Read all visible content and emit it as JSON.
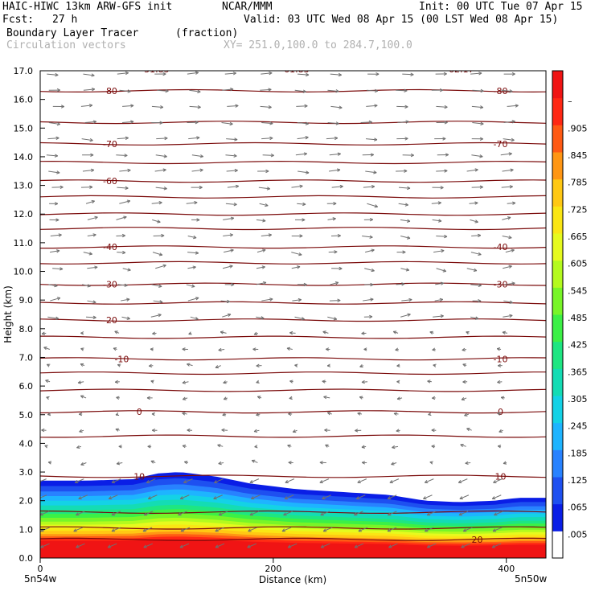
{
  "header": {
    "model": "HAIC-HIWC 13km ARW-GFS init",
    "org": "NCAR/MMM",
    "init": "Init: 00 UTC Tue 07 Apr 15",
    "fcst_label": "Fcst:",
    "fcst_value": "27 h",
    "valid": "Valid: 03 UTC Wed 08 Apr 15 (00 LST Wed 08 Apr 15)",
    "field": "Boundary Layer Tracer",
    "units": "(fraction)",
    "overlay": "Circulation vectors",
    "xy": "XY= 251.0,100.0 to 284.7,100.0"
  },
  "chart_data": {
    "type": "heatmap",
    "title": "Boundary Layer Tracer (fraction)",
    "xlabel": "Distance (km)",
    "ylabel": "Height (km)",
    "xlim": [
      0,
      434
    ],
    "ylim": [
      0,
      17
    ],
    "x_ticks": [
      0,
      200,
      400
    ],
    "y_ticks": [
      "0.0",
      "1.0",
      "2.0",
      "3.0",
      "4.0",
      "5.0",
      "6.0",
      "7.0",
      "8.0",
      "9.0",
      "10.0",
      "11.0",
      "12.0",
      "13.0",
      "14.0",
      "15.0",
      "16.0",
      "17.0"
    ],
    "x_endpoints": [
      "5n54w",
      "5n50w"
    ],
    "colorbar_ticks": [
      ".005",
      ".065",
      ".125",
      ".185",
      ".245",
      ".305",
      ".365",
      ".425",
      ".485",
      ".545",
      ".605",
      ".665",
      ".725",
      ".785",
      ".845",
      ".905",
      "–"
    ],
    "colorbar_colors": [
      "#ffffff",
      "#0a1ee6",
      "#1e50f0",
      "#2882ff",
      "#1eb4ff",
      "#14d2e6",
      "#14dcb4",
      "#1ee682",
      "#3cf046",
      "#78f528",
      "#b4fa1e",
      "#e6fa1e",
      "#fae614",
      "#ffc814",
      "#ff9614",
      "#ff5a14",
      "#ff2814",
      "#f01414"
    ],
    "bl_top_km": [
      [
        0,
        2.7
      ],
      [
        40,
        2.7
      ],
      [
        80,
        2.75
      ],
      [
        100,
        2.95
      ],
      [
        120,
        3.0
      ],
      [
        150,
        2.85
      ],
      [
        180,
        2.6
      ],
      [
        220,
        2.4
      ],
      [
        260,
        2.3
      ],
      [
        300,
        2.2
      ],
      [
        330,
        2.0
      ],
      [
        360,
        1.95
      ],
      [
        390,
        2.0
      ],
      [
        410,
        2.1
      ],
      [
        434,
        2.1
      ]
    ],
    "temperature_contours": [
      {
        "label": "-80",
        "z_km": 16.3,
        "label_x": [
          60,
          395
        ]
      },
      {
        "label": "-70",
        "z_km": 14.45,
        "label_x": [
          60,
          395
        ]
      },
      {
        "label": "-60",
        "z_km": 13.15,
        "label_x": [
          60
        ]
      },
      {
        "label": "-40",
        "z_km": 10.85,
        "label_x": [
          60,
          395
        ]
      },
      {
        "label": "-30",
        "z_km": 9.55,
        "label_x": [
          60,
          395
        ]
      },
      {
        "label": "-20",
        "z_km": 8.3,
        "label_x": [
          60
        ]
      },
      {
        "label": "-10",
        "z_km": 6.95,
        "label_x": [
          70,
          395
        ]
      },
      {
        "label": "0",
        "z_km": 5.1,
        "label_x": [
          85,
          395
        ]
      },
      {
        "label": "10",
        "z_km": 2.85,
        "label_x": [
          85,
          395
        ]
      },
      {
        "label": "20",
        "z_km": 0.65,
        "label_x": [
          375
        ]
      }
    ],
    "extra_contour_levels_km": [
      15.2,
      13.8,
      12.6,
      12.0,
      11.5,
      10.3,
      8.9,
      7.7,
      6.45,
      5.85,
      4.25,
      1.6,
      1.05
    ],
    "top_labels": [
      "31.85",
      "61.83",
      "-62.17"
    ]
  }
}
